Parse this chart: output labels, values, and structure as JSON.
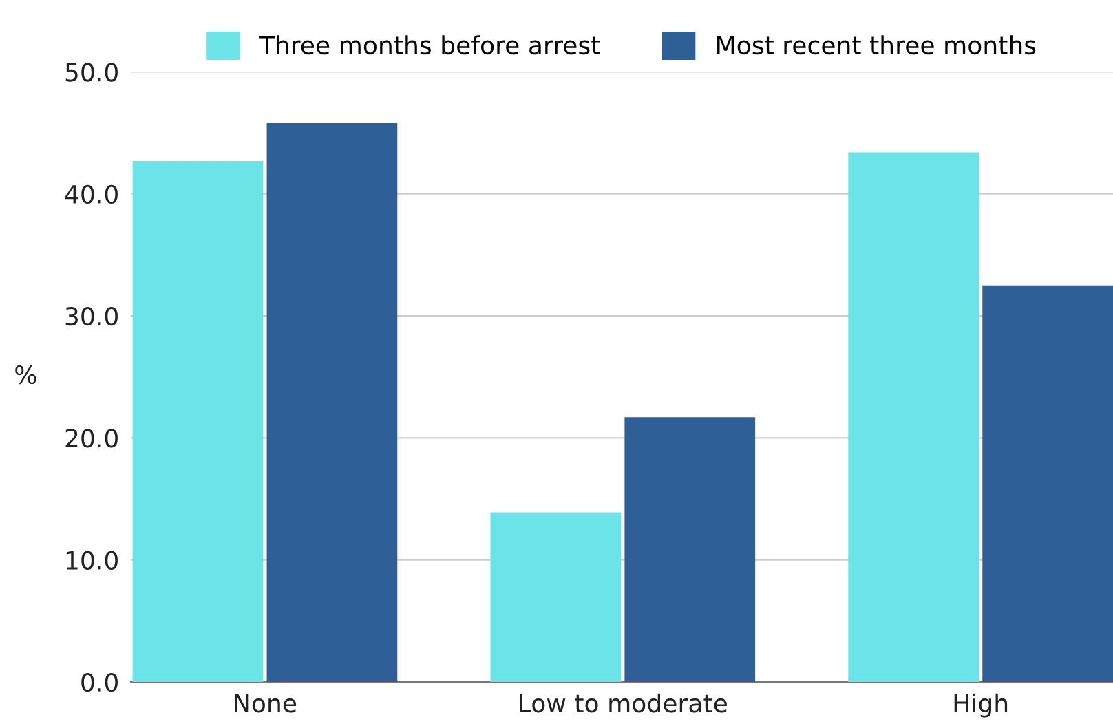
{
  "chart_data": {
    "type": "bar",
    "ylabel": "%",
    "categories": [
      "None",
      "Low to moderate",
      "High"
    ],
    "series": [
      {
        "name": "Three months before arrest",
        "color": "#6ae4e6",
        "values": [
          42.7,
          13.9,
          43.4
        ]
      },
      {
        "name": "Most recent three months",
        "color": "#2e6097",
        "values": [
          45.8,
          21.7,
          32.5
        ]
      }
    ],
    "ylim": [
      0,
      50
    ],
    "yticks": [
      {
        "value": 0,
        "label": "0.0"
      },
      {
        "value": 10,
        "label": "10.0"
      },
      {
        "value": 20,
        "label": "20.0"
      },
      {
        "value": 30,
        "label": "30.0"
      },
      {
        "value": 40,
        "label": "40.0"
      },
      {
        "value": 50,
        "label": "50.0"
      }
    ],
    "grid": "y",
    "legend": "top"
  }
}
